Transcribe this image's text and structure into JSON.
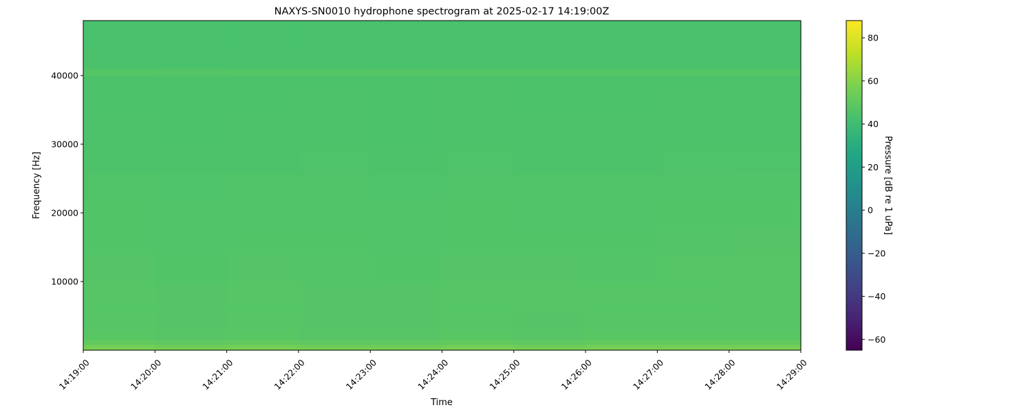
{
  "chart_data": {
    "type": "heatmap",
    "title": "NAXYS-SN0010 hydrophone spectrogram at 2025-02-17 14:19:00Z",
    "xlabel": "Time",
    "ylabel": "Frequency [Hz]",
    "colorbar_label": "Pressure [dB re 1 uPa]",
    "colormap": "viridis",
    "clim": [
      -65,
      88
    ],
    "colorbar_ticks": [
      "80",
      "60",
      "40",
      "20",
      "0",
      "−20",
      "−40",
      "−60"
    ],
    "colorbar_tick_values": [
      80,
      60,
      40,
      20,
      0,
      -20,
      -40,
      -60
    ],
    "xlim": [
      "14:19:00",
      "14:29:00"
    ],
    "x_ticks": [
      "14:19:00",
      "14:20:00",
      "14:21:00",
      "14:22:00",
      "14:23:00",
      "14:24:00",
      "14:25:00",
      "14:26:00",
      "14:27:00",
      "14:28:00",
      "14:29:00"
    ],
    "ylim": [
      0,
      48000
    ],
    "y_ticks": [
      10000,
      20000,
      30000,
      40000
    ],
    "y_tick_labels": [
      "10000",
      "20000",
      "30000",
      "40000"
    ],
    "time_bins": [
      "14:19",
      "14:20",
      "14:21",
      "14:22",
      "14:23",
      "14:24",
      "14:25",
      "14:26",
      "14:27",
      "14:28"
    ],
    "freq_bin_edges_hz": [
      0,
      300,
      800,
      1500,
      3000,
      6000,
      10000,
      14000,
      18000,
      22000,
      26000,
      30000,
      34000,
      38000,
      40000,
      41000,
      44000,
      48000
    ],
    "values_db": [
      [
        58,
        57,
        58,
        57,
        57,
        58,
        57,
        58,
        58,
        58
      ],
      [
        55,
        54,
        55,
        54,
        54,
        55,
        54,
        55,
        55,
        55
      ],
      [
        51,
        50,
        51,
        50,
        50,
        51,
        50,
        51,
        51,
        51
      ],
      [
        48,
        47.5,
        48,
        47.5,
        47.5,
        48,
        47.5,
        48,
        48,
        48
      ],
      [
        47,
        46.5,
        47,
        46.5,
        46.5,
        47,
        46.5,
        47,
        47,
        47.5
      ],
      [
        47,
        46.5,
        46.8,
        46.5,
        46.5,
        47,
        46.8,
        46.8,
        47,
        47.5
      ],
      [
        46.5,
        46,
        46.5,
        46.3,
        46,
        46.5,
        46.5,
        46.3,
        46.8,
        47
      ],
      [
        46,
        45.8,
        46,
        46,
        45.8,
        46.2,
        46,
        46,
        46.3,
        46.5
      ],
      [
        46,
        45.7,
        45.8,
        45.9,
        45.7,
        46,
        45.9,
        45.8,
        46,
        46.2
      ],
      [
        45.5,
        45.3,
        45.5,
        45.5,
        45.3,
        45.6,
        45.5,
        45.4,
        45.6,
        45.8
      ],
      [
        45,
        44.9,
        45,
        45.1,
        44.9,
        45.2,
        45,
        45,
        45.1,
        45.3
      ],
      [
        44.6,
        44.5,
        44.6,
        44.7,
        44.5,
        44.8,
        44.6,
        44.6,
        44.7,
        44.9
      ],
      [
        44.5,
        44.4,
        44.5,
        44.6,
        44.4,
        44.6,
        44.5,
        44.5,
        44.6,
        44.7
      ],
      [
        44.5,
        44.4,
        44.5,
        44.5,
        44.4,
        44.6,
        44.5,
        44.5,
        44.5,
        44.6
      ],
      [
        47,
        46.5,
        47,
        47,
        47,
        47,
        46.8,
        46.8,
        46.8,
        47
      ],
      [
        44,
        43.9,
        44,
        44,
        43.9,
        44.1,
        44,
        44,
        44,
        44.2
      ],
      [
        43.5,
        43.4,
        43.5,
        43.5,
        43.4,
        43.6,
        43.5,
        43.5,
        43.5,
        43.6
      ]
    ]
  }
}
